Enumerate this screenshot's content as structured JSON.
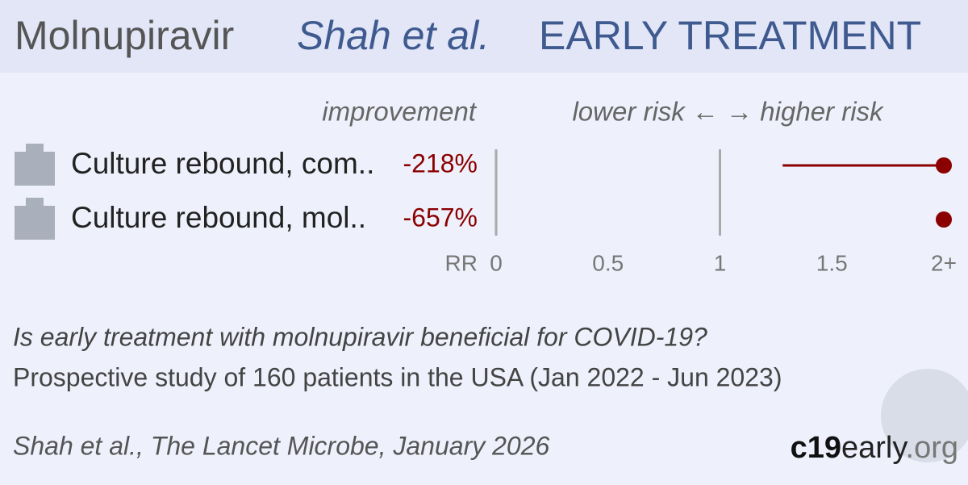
{
  "chart_data": {
    "type": "forest",
    "title": [
      "Molnupiravir",
      "Shah et al.",
      "EARLY TREATMENT"
    ],
    "improvement_header": "improvement",
    "direction_header": "lower risk ← → higher risk",
    "xlabel": "RR",
    "categories": [
      "Culture rebound, com..",
      "Culture rebound, mol.."
    ],
    "values": [
      -218,
      -657
    ],
    "value_labels": [
      "-218%",
      "-657%"
    ],
    "rr": [
      2,
      2
    ],
    "ci_low": [
      1.28,
      null
    ],
    "ci_high": [
      2,
      null
    ],
    "color": "#8b0000",
    "xlim": [
      0,
      2
    ],
    "xticks": [
      0,
      0.5,
      1,
      1.5,
      {
        "value": 2,
        "label": "2+"
      }
    ],
    "ref_lines": [
      0,
      1
    ],
    "question": "Is early treatment with molnupiravir beneficial for COVID-19?",
    "description": "Prospective study of 160 patients in the USA (Jan 2022 - Jun 2023)",
    "citation": "Shah et al., The Lancet Microbe, January 2026",
    "brand": [
      "c19",
      "early",
      ".org"
    ]
  }
}
